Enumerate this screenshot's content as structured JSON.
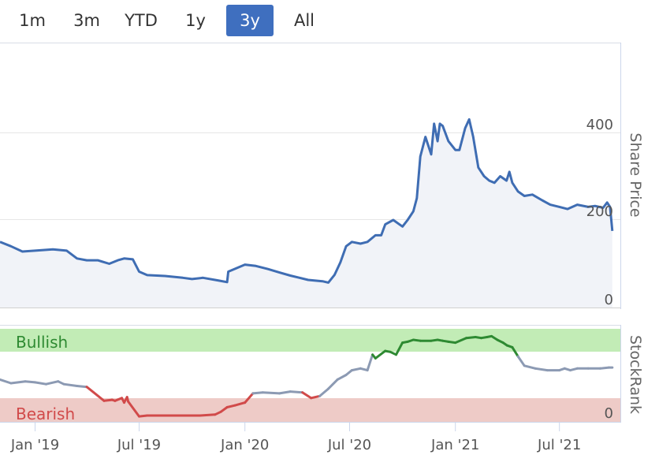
{
  "range_selector": {
    "buttons": [
      "1m",
      "3m",
      "YTD",
      "1y",
      "3y",
      "All"
    ],
    "active": "3y"
  },
  "colors": {
    "price_line": "#3f6db3",
    "price_fill": "#f1f3f8",
    "rank_line": "#8c9ab3",
    "bullish_line": "#2e8a32",
    "bearish_line": "#d14a4a",
    "bullish_zone": "#c2ecb6",
    "bearish_zone": "#eecbc7",
    "active_button": "#3f6fbf"
  },
  "chart_data": [
    {
      "type": "area",
      "ylabel": "Share Price",
      "ylim": [
        0,
        420
      ],
      "yticks": [
        0,
        200,
        400
      ],
      "xlim": [
        "2018-11-01",
        "2021-10-15"
      ],
      "x": [
        "2018-11-01",
        "2018-11-20",
        "2018-12-10",
        "2019-01-01",
        "2019-02-01",
        "2019-02-25",
        "2019-03-15",
        "2019-04-01",
        "2019-04-20",
        "2019-05-10",
        "2019-05-25",
        "2019-06-05",
        "2019-06-20",
        "2019-07-01",
        "2019-07-15",
        "2019-08-15",
        "2019-09-15",
        "2019-10-01",
        "2019-10-20",
        "2019-11-15",
        "2019-12-01",
        "2019-12-03",
        "2020-01-01",
        "2020-01-20",
        "2020-02-10",
        "2020-03-01",
        "2020-03-20",
        "2020-04-05",
        "2020-04-20",
        "2020-05-15",
        "2020-05-25",
        "2020-06-05",
        "2020-06-15",
        "2020-06-25",
        "2020-07-05",
        "2020-07-20",
        "2020-08-01",
        "2020-08-15",
        "2020-08-25",
        "2020-09-01",
        "2020-09-15",
        "2020-10-01",
        "2020-10-10",
        "2020-10-20",
        "2020-10-26",
        "2020-11-01",
        "2020-11-10",
        "2020-11-20",
        "2020-11-25",
        "2020-12-01",
        "2020-12-05",
        "2020-12-10",
        "2020-12-20",
        "2021-01-01",
        "2021-01-08",
        "2021-01-18",
        "2021-01-25",
        "2021-02-01",
        "2021-02-10",
        "2021-02-20",
        "2021-03-01",
        "2021-03-10",
        "2021-03-20",
        "2021-03-31",
        "2021-04-05",
        "2021-04-10",
        "2021-04-20",
        "2021-05-01",
        "2021-05-15",
        "2021-06-01",
        "2021-06-15",
        "2021-07-01",
        "2021-07-15",
        "2021-08-01",
        "2021-08-20",
        "2021-09-01",
        "2021-09-15",
        "2021-09-22",
        "2021-09-27",
        "2021-10-01"
      ],
      "values": [
        150,
        140,
        128,
        130,
        133,
        130,
        112,
        108,
        108,
        100,
        108,
        112,
        110,
        82,
        74,
        72,
        68,
        65,
        68,
        62,
        58,
        82,
        98,
        95,
        88,
        80,
        73,
        68,
        63,
        60,
        57,
        75,
        103,
        140,
        150,
        146,
        150,
        165,
        165,
        190,
        200,
        185,
        200,
        220,
        250,
        345,
        390,
        350,
        420,
        380,
        420,
        415,
        380,
        360,
        360,
        410,
        430,
        390,
        320,
        300,
        290,
        285,
        300,
        290,
        310,
        285,
        265,
        255,
        258,
        245,
        235,
        230,
        225,
        235,
        230,
        232,
        228,
        240,
        230,
        175
      ]
    },
    {
      "type": "line",
      "ylabel": "StockRank",
      "ylim": [
        0,
        100
      ],
      "yticks": [
        0
      ],
      "zones": [
        "Bullish",
        "Bearish"
      ],
      "xticks": [
        "Jan '19",
        "Jul '19",
        "Jan '20",
        "Jul '20",
        "Jan '21",
        "Jul '21"
      ],
      "x": [
        "2018-11-01",
        "2018-11-20",
        "2018-12-15",
        "2019-01-01",
        "2019-01-20",
        "2019-02-10",
        "2019-02-20",
        "2019-03-15",
        "2019-04-01",
        "2019-05-01",
        "2019-05-15",
        "2019-05-20",
        "2019-06-01",
        "2019-06-05",
        "2019-06-10",
        "2019-06-12",
        "2019-07-01",
        "2019-07-15",
        "2019-08-15",
        "2019-09-15",
        "2019-10-15",
        "2019-11-10",
        "2019-11-20",
        "2019-12-01",
        "2019-12-15",
        "2020-01-01",
        "2020-01-15",
        "2020-02-01",
        "2020-03-01",
        "2020-03-20",
        "2020-04-10",
        "2020-04-25",
        "2020-05-10",
        "2020-05-25",
        "2020-06-10",
        "2020-06-25",
        "2020-07-05",
        "2020-07-20",
        "2020-08-01",
        "2020-08-10",
        "2020-08-15",
        "2020-09-01",
        "2020-09-10",
        "2020-09-20",
        "2020-10-01",
        "2020-10-10",
        "2020-10-20",
        "2020-11-01",
        "2020-11-20",
        "2020-12-01",
        "2020-12-10",
        "2020-12-20",
        "2021-01-01",
        "2021-01-20",
        "2021-02-05",
        "2021-02-15",
        "2021-02-25",
        "2021-03-05",
        "2021-03-15",
        "2021-03-25",
        "2021-04-01",
        "2021-04-10",
        "2021-04-20",
        "2021-05-01",
        "2021-05-20",
        "2021-06-10",
        "2021-07-01",
        "2021-07-10",
        "2021-07-20",
        "2021-08-01",
        "2021-08-20",
        "2021-09-10",
        "2021-09-25",
        "2021-10-01"
      ],
      "values": [
        45,
        41,
        43,
        42,
        40,
        43,
        40,
        38,
        37,
        22,
        23,
        22,
        25,
        20,
        26,
        21,
        5,
        6,
        6,
        6,
        6,
        7,
        10,
        15,
        17,
        20,
        30,
        31,
        30,
        32,
        31,
        25,
        27,
        35,
        45,
        50,
        55,
        57,
        55,
        72,
        68,
        76,
        75,
        72,
        85,
        86,
        88,
        87,
        87,
        88,
        87,
        86,
        85,
        90,
        91,
        90,
        91,
        92,
        88,
        85,
        82,
        80,
        70,
        60,
        57,
        55,
        55,
        57,
        55,
        57,
        57,
        57,
        58,
        58
      ]
    }
  ]
}
